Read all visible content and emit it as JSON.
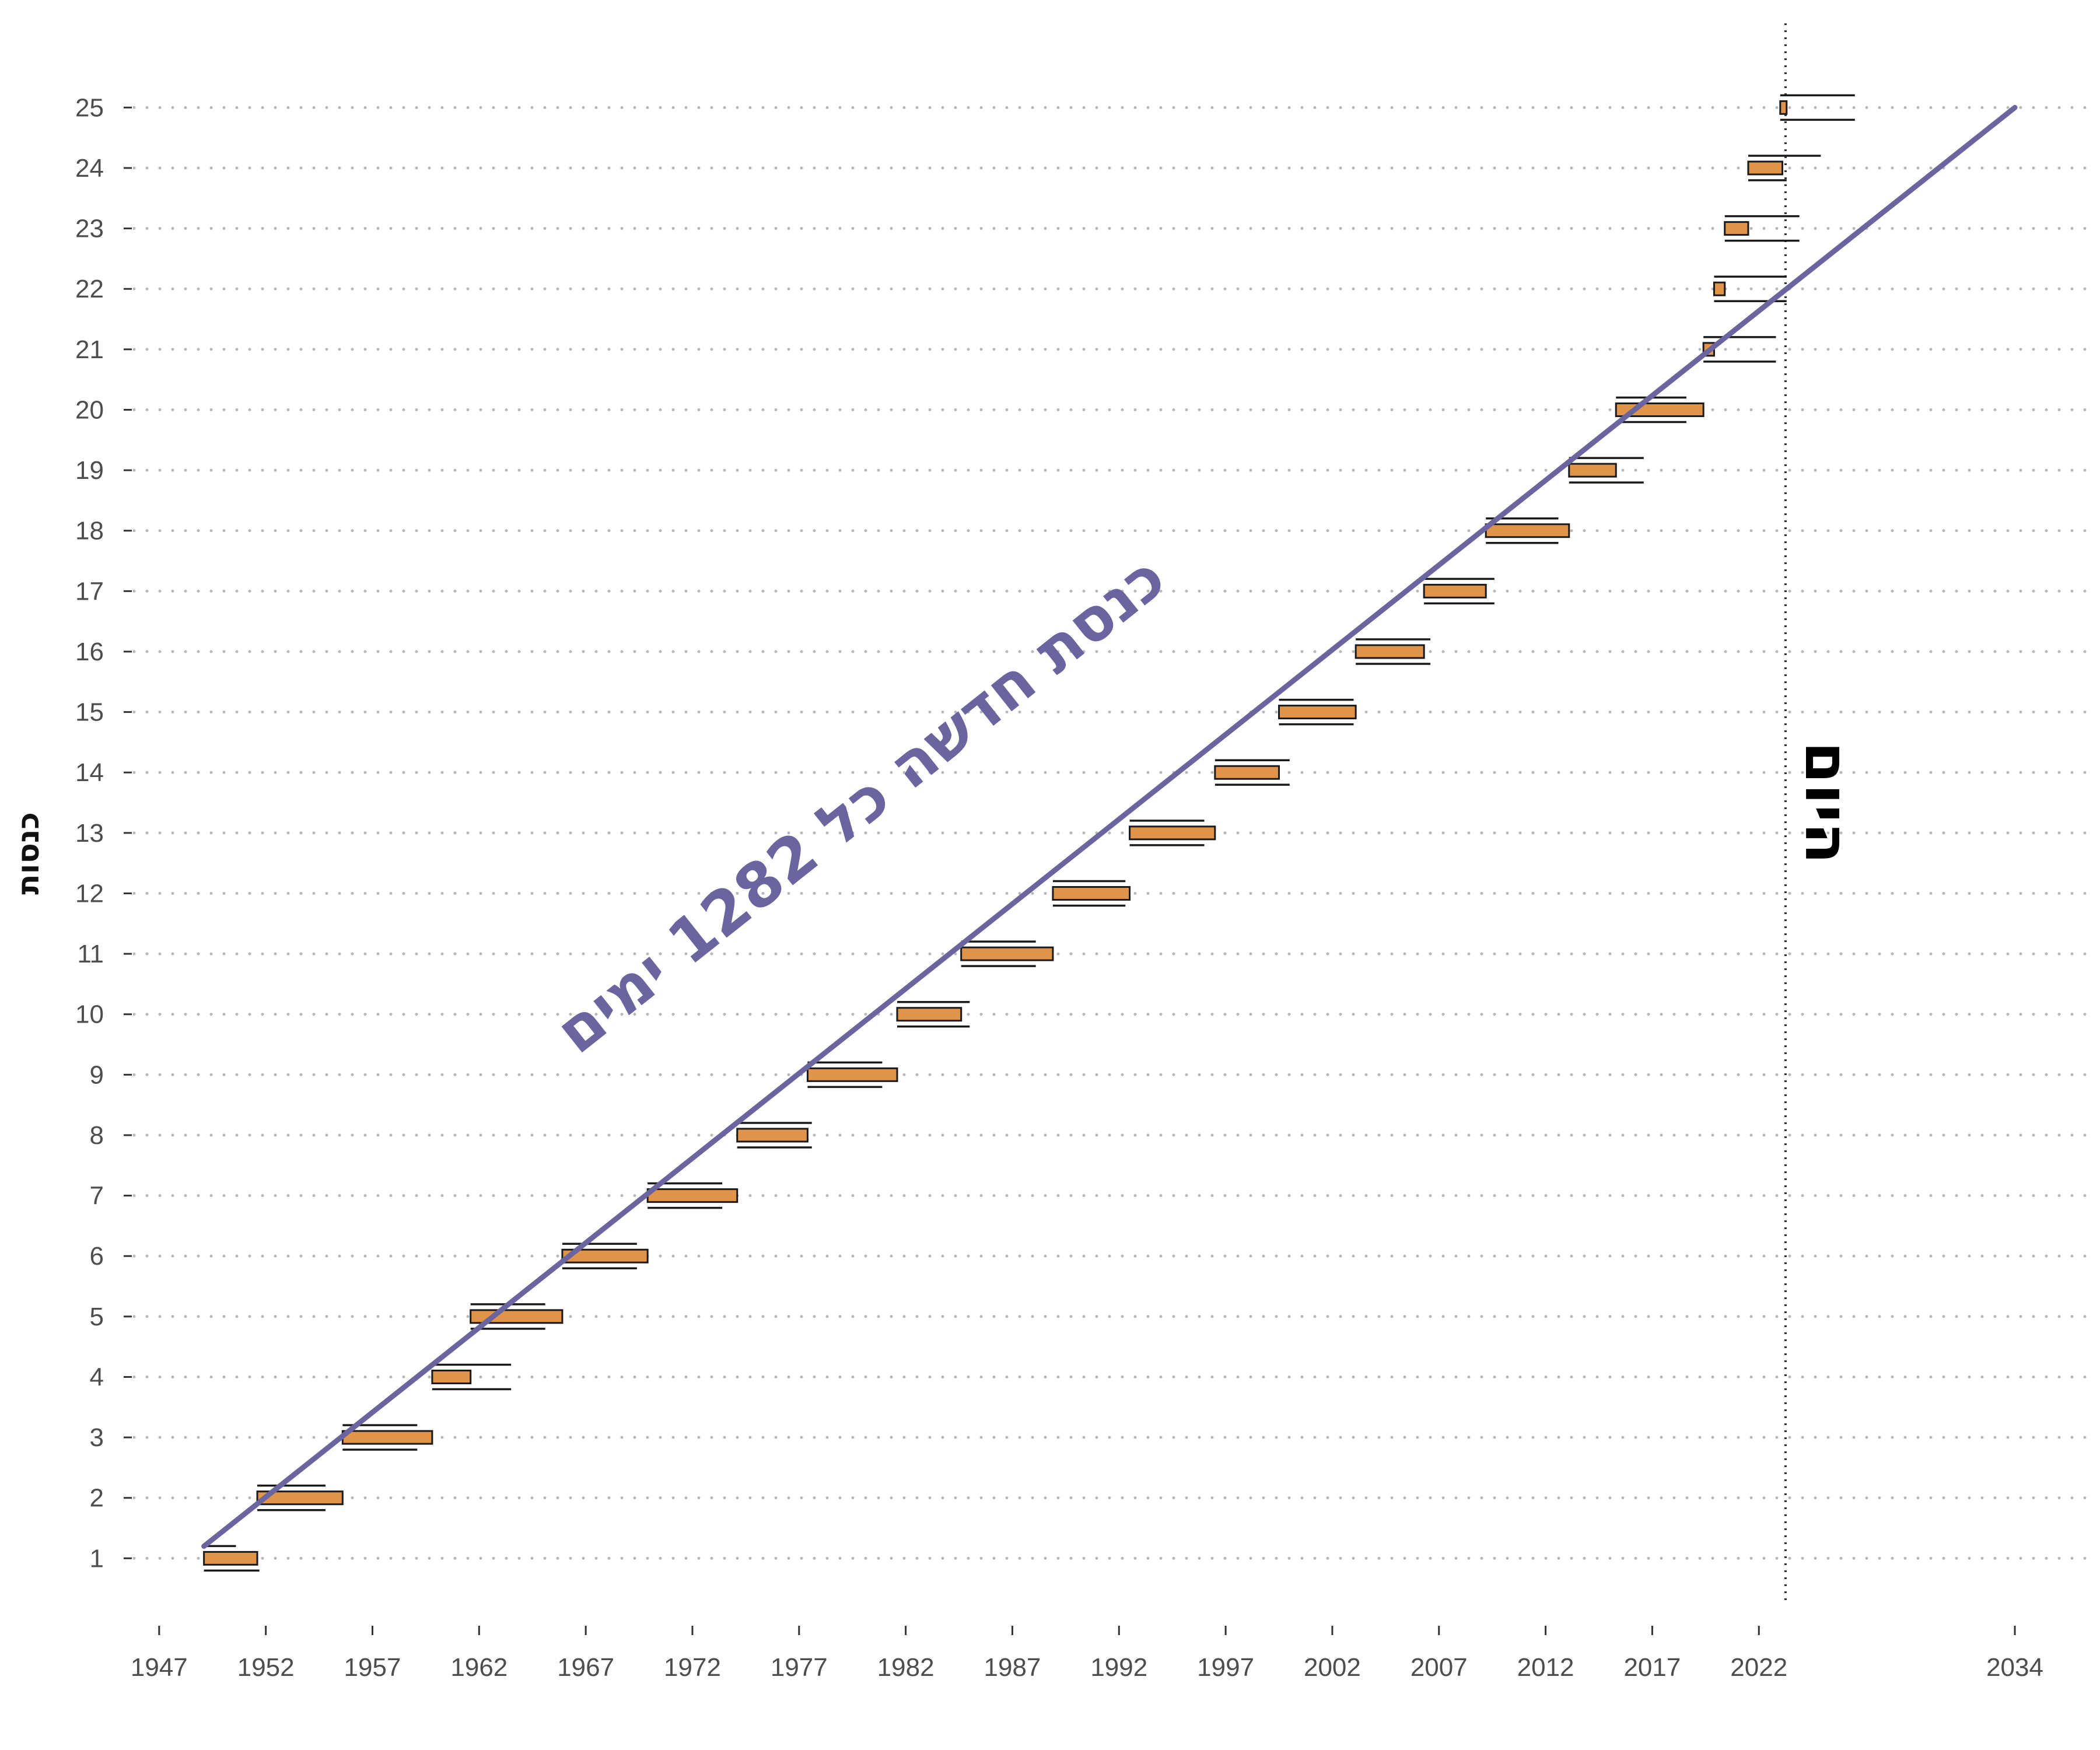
{
  "chart_data": {
    "type": "bar",
    "description_free": true,
    "ylabel": "כנסות",
    "trend_label": "כנסת חדשה כל 1282 ימים",
    "today_label": "היום",
    "today_x": 2023.25,
    "x_ticks": [
      1947,
      1952,
      1957,
      1962,
      1967,
      1972,
      1977,
      1982,
      1987,
      1992,
      1997,
      2002,
      2007,
      2012,
      2017,
      2022,
      2034
    ],
    "xlim": [
      1945.5,
      2037.5
    ],
    "y_ticks": [
      1,
      2,
      3,
      4,
      5,
      6,
      7,
      8,
      9,
      10,
      11,
      12,
      13,
      14,
      15,
      16,
      17,
      18,
      19,
      20,
      21,
      22,
      23,
      24,
      25
    ],
    "ylim": [
      0,
      26.2
    ],
    "grid": "horizontal-dotted",
    "trend_line": {
      "x": [
        1949.1,
        2034.0
      ],
      "y": [
        1.2,
        25.0
      ]
    },
    "knessets": [
      {
        "n": 1,
        "bar": [
          1949.1,
          1951.6
        ],
        "top": [
          1949.1,
          1950.6
        ],
        "bottom": [
          1949.1,
          1951.7
        ]
      },
      {
        "n": 2,
        "bar": [
          1951.6,
          1955.6
        ],
        "top": [
          1951.6,
          1954.8
        ],
        "bottom": [
          1951.6,
          1954.8
        ]
      },
      {
        "n": 3,
        "bar": [
          1955.6,
          1959.8
        ],
        "top": [
          1955.6,
          1959.1
        ],
        "bottom": [
          1955.6,
          1959.1
        ]
      },
      {
        "n": 4,
        "bar": [
          1959.8,
          1961.6
        ],
        "top": [
          1959.8,
          1963.5
        ],
        "bottom": [
          1959.8,
          1963.5
        ]
      },
      {
        "n": 5,
        "bar": [
          1961.6,
          1965.9
        ],
        "top": [
          1961.6,
          1965.1
        ],
        "bottom": [
          1961.6,
          1965.1
        ]
      },
      {
        "n": 6,
        "bar": [
          1965.9,
          1969.9
        ],
        "top": [
          1965.9,
          1969.4
        ],
        "bottom": [
          1965.9,
          1969.4
        ]
      },
      {
        "n": 7,
        "bar": [
          1969.9,
          1974.1
        ],
        "top": [
          1969.9,
          1973.4
        ],
        "bottom": [
          1969.9,
          1973.4
        ]
      },
      {
        "n": 8,
        "bar": [
          1974.1,
          1977.4
        ],
        "top": [
          1974.1,
          1977.6
        ],
        "bottom": [
          1974.1,
          1977.6
        ]
      },
      {
        "n": 9,
        "bar": [
          1977.4,
          1981.6
        ],
        "top": [
          1977.4,
          1980.9
        ],
        "bottom": [
          1977.4,
          1980.9
        ]
      },
      {
        "n": 10,
        "bar": [
          1981.6,
          1984.6
        ],
        "top": [
          1981.6,
          1985.0
        ],
        "bottom": [
          1981.6,
          1985.0
        ]
      },
      {
        "n": 11,
        "bar": [
          1984.6,
          1988.9
        ],
        "top": [
          1984.6,
          1988.1
        ],
        "bottom": [
          1984.6,
          1988.1
        ]
      },
      {
        "n": 12,
        "bar": [
          1988.9,
          1992.5
        ],
        "top": [
          1988.9,
          1992.3
        ],
        "bottom": [
          1988.9,
          1992.3
        ]
      },
      {
        "n": 13,
        "bar": [
          1992.5,
          1996.5
        ],
        "top": [
          1992.5,
          1996.0
        ],
        "bottom": [
          1992.5,
          1996.0
        ]
      },
      {
        "n": 14,
        "bar": [
          1996.5,
          1999.5
        ],
        "top": [
          1996.5,
          2000.0
        ],
        "bottom": [
          1996.5,
          2000.0
        ]
      },
      {
        "n": 15,
        "bar": [
          1999.5,
          2003.1
        ],
        "top": [
          1999.5,
          2003.0
        ],
        "bottom": [
          1999.5,
          2003.0
        ]
      },
      {
        "n": 16,
        "bar": [
          2003.1,
          2006.3
        ],
        "top": [
          2003.1,
          2006.6
        ],
        "bottom": [
          2003.1,
          2006.6
        ]
      },
      {
        "n": 17,
        "bar": [
          2006.3,
          2009.2
        ],
        "top": [
          2006.3,
          2009.6
        ],
        "bottom": [
          2006.3,
          2009.6
        ]
      },
      {
        "n": 18,
        "bar": [
          2009.2,
          2013.1
        ],
        "top": [
          2009.2,
          2012.6
        ],
        "bottom": [
          2009.2,
          2012.6
        ]
      },
      {
        "n": 19,
        "bar": [
          2013.1,
          2015.3
        ],
        "top": [
          2013.1,
          2016.6
        ],
        "bottom": [
          2013.1,
          2016.6
        ]
      },
      {
        "n": 20,
        "bar": [
          2015.3,
          2019.4
        ],
        "top": [
          2015.3,
          2018.6
        ],
        "bottom": [
          2015.3,
          2018.6
        ]
      },
      {
        "n": 21,
        "bar": [
          2019.4,
          2019.9
        ],
        "top": [
          2019.4,
          2022.8
        ],
        "bottom": [
          2019.4,
          2022.8
        ]
      },
      {
        "n": 22,
        "bar": [
          2019.9,
          2020.4
        ],
        "top": [
          2019.9,
          2023.3
        ],
        "bottom": [
          2019.9,
          2023.3
        ]
      },
      {
        "n": 23,
        "bar": [
          2020.4,
          2021.5
        ],
        "top": [
          2020.4,
          2023.9
        ],
        "bottom": [
          2020.4,
          2023.9
        ]
      },
      {
        "n": 24,
        "bar": [
          2021.5,
          2023.1
        ],
        "top": [
          2021.5,
          2024.9
        ],
        "bottom": [
          2021.5,
          2023.3
        ]
      },
      {
        "n": 25,
        "bar": [
          2023.0,
          2023.3
        ],
        "top": [
          2023.0,
          2026.5
        ],
        "bottom": [
          2023.0,
          2026.5
        ]
      }
    ],
    "colors": {
      "bar_fill": "#e0944a",
      "bar_stroke": "#1a1a1a",
      "trend": "#6a659e",
      "grid": "#b8b8b8",
      "today_line": "#333333"
    }
  }
}
